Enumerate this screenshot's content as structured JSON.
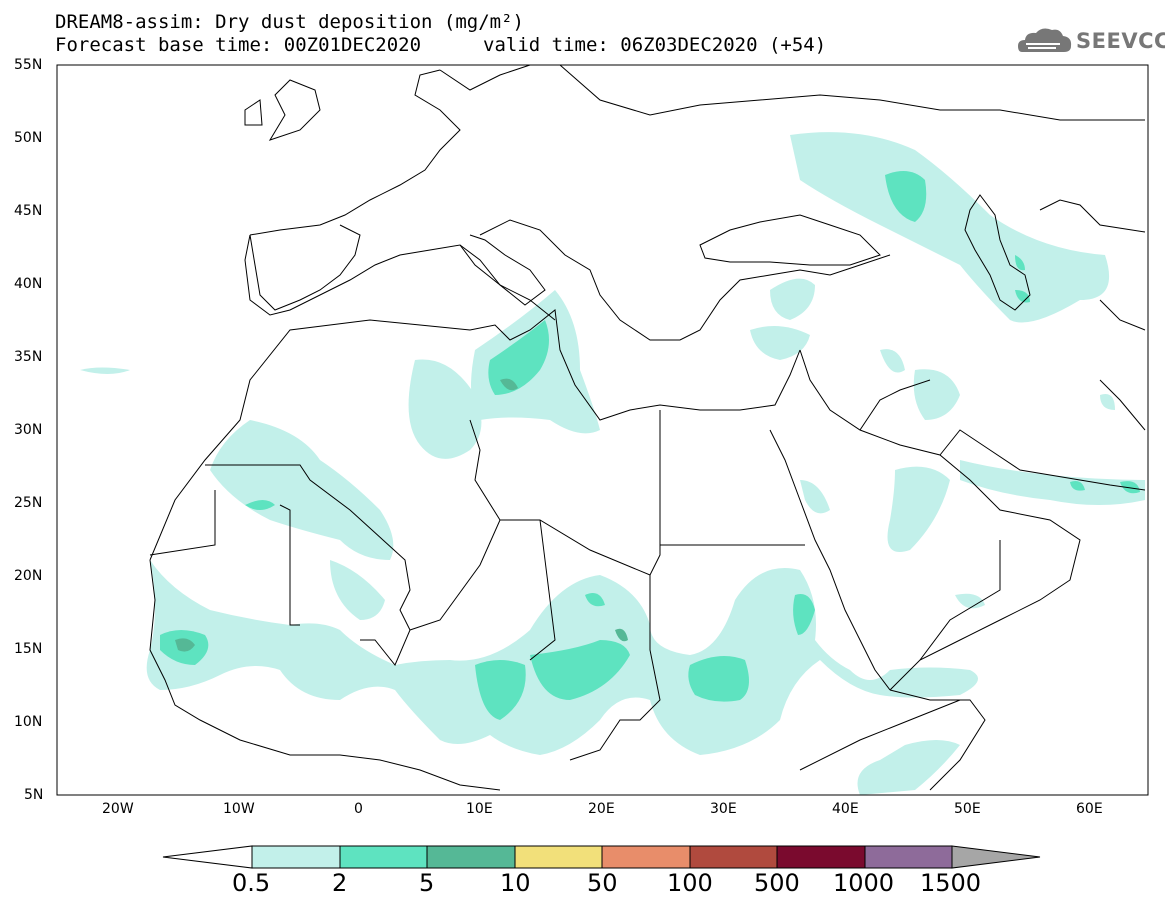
{
  "header": {
    "line1": "DREAM8-assim: Dry dust deposition (mg/m²)",
    "line2": "Forecast base time: 00Z01DEC2020",
    "valid": "valid time: 06Z03DEC2020 (+54)"
  },
  "logo": {
    "text": "SEEVCCC",
    "icon": "cloud-logo-icon"
  },
  "map": {
    "lat_labels": [
      "55N",
      "50N",
      "45N",
      "40N",
      "35N",
      "30N",
      "25N",
      "20N",
      "15N",
      "10N",
      "5N"
    ],
    "lon_labels": [
      "20W",
      "10W",
      "0",
      "10E",
      "20E",
      "30E",
      "40E",
      "50E",
      "60E"
    ]
  },
  "colorbar": {
    "labels": [
      "0.5",
      "2",
      "5",
      "10",
      "50",
      "100",
      "500",
      "1000",
      "1500"
    ],
    "colors": [
      "#c2f0ea",
      "#5ee3c0",
      "#55b896",
      "#f2e07a",
      "#e88d6a",
      "#b04a3e",
      "#7a0a2e",
      "#8e6b9a",
      "#a6a6a6"
    ]
  }
}
